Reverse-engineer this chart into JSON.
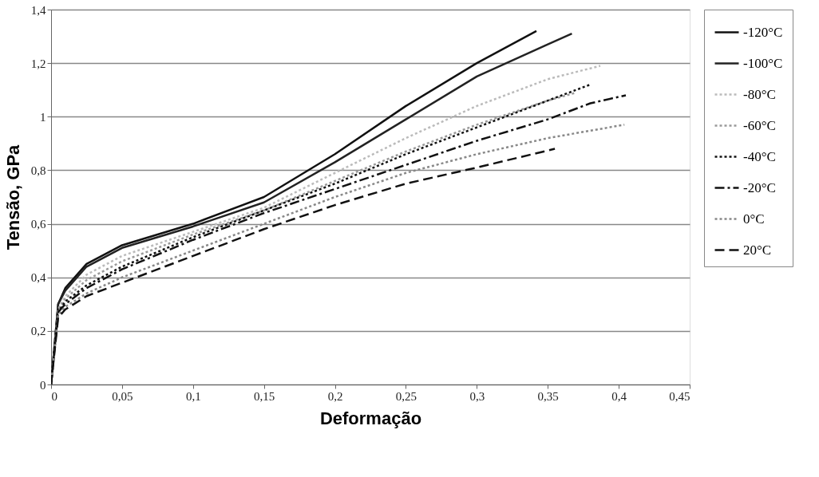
{
  "chart_data": {
    "type": "line",
    "xlabel": "Deformação",
    "ylabel": "Tensão, GPa",
    "xlim": [
      0,
      0.45
    ],
    "ylim": [
      0,
      1.4
    ],
    "xticks": [
      0,
      {
        "value": 0.05,
        "label": "0,05"
      },
      {
        "value": 0.1,
        "label": "0,1"
      },
      {
        "value": 0.15,
        "label": "0,15"
      },
      {
        "value": 0.2,
        "label": "0,2"
      },
      {
        "value": 0.25,
        "label": "0,25"
      },
      {
        "value": 0.3,
        "label": "0,3"
      },
      {
        "value": 0.35,
        "label": "0,35"
      },
      {
        "value": 0.4,
        "label": "0,4"
      },
      {
        "value": 0.45,
        "label": "0,45"
      }
    ],
    "yticks": [
      0,
      {
        "value": 0.2,
        "label": "0,2"
      },
      {
        "value": 0.4,
        "label": "0,4"
      },
      {
        "value": 0.6,
        "label": "0,6"
      },
      {
        "value": 0.8,
        "label": "0,8"
      },
      1,
      {
        "value": 1.2,
        "label": "1,2"
      },
      {
        "value": 1.4,
        "label": "1,4"
      }
    ],
    "grid": "y",
    "legend": "right",
    "marker": "none",
    "series": [
      {
        "name": "-120°C",
        "color": "#111111",
        "line_style": "solid",
        "x": [
          0,
          0.005,
          0.01,
          0.025,
          0.05,
          0.1,
          0.15,
          0.2,
          0.25,
          0.3,
          0.342
        ],
        "values": [
          0,
          0.3,
          0.36,
          0.45,
          0.52,
          0.6,
          0.7,
          0.86,
          1.04,
          1.2,
          1.32
        ]
      },
      {
        "name": "-100°C",
        "color": "#222222",
        "line_style": "solid",
        "x": [
          0,
          0.005,
          0.01,
          0.025,
          0.05,
          0.1,
          0.15,
          0.2,
          0.25,
          0.3,
          0.35,
          0.367
        ],
        "values": [
          0,
          0.3,
          0.35,
          0.44,
          0.51,
          0.59,
          0.68,
          0.83,
          0.99,
          1.15,
          1.27,
          1.31
        ]
      },
      {
        "name": "-80°C",
        "color": "#bbbbbb",
        "line_style": "dotted",
        "x": [
          0,
          0.005,
          0.01,
          0.025,
          0.05,
          0.1,
          0.15,
          0.2,
          0.25,
          0.3,
          0.35,
          0.387
        ],
        "values": [
          0,
          0.28,
          0.33,
          0.41,
          0.48,
          0.57,
          0.66,
          0.79,
          0.92,
          1.04,
          1.14,
          1.19
        ]
      },
      {
        "name": "-60°C",
        "color": "#999999",
        "line_style": "dotted",
        "x": [
          0,
          0.005,
          0.01,
          0.025,
          0.05,
          0.1,
          0.15,
          0.2,
          0.25,
          0.3,
          0.35,
          0.37
        ],
        "values": [
          0,
          0.28,
          0.32,
          0.39,
          0.46,
          0.56,
          0.65,
          0.76,
          0.87,
          0.97,
          1.06,
          1.09
        ]
      },
      {
        "name": "-40°C",
        "color": "#111111",
        "line_style": "dotted",
        "x": [
          0,
          0.005,
          0.01,
          0.025,
          0.05,
          0.1,
          0.15,
          0.2,
          0.25,
          0.3,
          0.35,
          0.38
        ],
        "values": [
          0,
          0.27,
          0.31,
          0.37,
          0.44,
          0.55,
          0.65,
          0.75,
          0.86,
          0.96,
          1.06,
          1.12
        ]
      },
      {
        "name": "-20°C",
        "color": "#111111",
        "line_style": "dashdot",
        "x": [
          0,
          0.005,
          0.01,
          0.025,
          0.05,
          0.1,
          0.15,
          0.2,
          0.25,
          0.3,
          0.35,
          0.38,
          0.405
        ],
        "values": [
          0,
          0.27,
          0.3,
          0.36,
          0.43,
          0.54,
          0.64,
          0.73,
          0.82,
          0.91,
          0.99,
          1.05,
          1.08
        ]
      },
      {
        "name": "0°C",
        "color": "#888888",
        "line_style": "dotted",
        "x": [
          0,
          0.005,
          0.01,
          0.025,
          0.05,
          0.1,
          0.15,
          0.2,
          0.25,
          0.3,
          0.35,
          0.404
        ],
        "values": [
          0,
          0.26,
          0.29,
          0.34,
          0.4,
          0.5,
          0.6,
          0.7,
          0.79,
          0.86,
          0.92,
          0.97
        ]
      },
      {
        "name": "20°C",
        "color": "#111111",
        "line_style": "dashed",
        "x": [
          0,
          0.005,
          0.01,
          0.025,
          0.05,
          0.1,
          0.15,
          0.2,
          0.25,
          0.3,
          0.355
        ],
        "values": [
          0,
          0.25,
          0.28,
          0.33,
          0.38,
          0.48,
          0.58,
          0.67,
          0.75,
          0.81,
          0.88
        ]
      }
    ]
  }
}
